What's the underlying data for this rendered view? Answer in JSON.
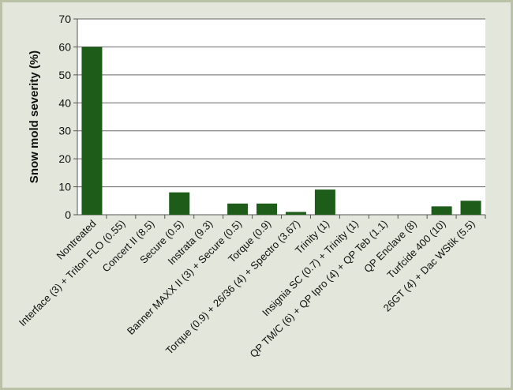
{
  "chart_data": {
    "type": "bar",
    "title": "",
    "xlabel": "",
    "ylabel": "Snow mold severity (%)",
    "ylim": [
      0,
      70
    ],
    "yticks": [
      0,
      10,
      20,
      30,
      40,
      50,
      60,
      70
    ],
    "grid": true,
    "bar_color": "#1e5c1a",
    "categories": [
      "Nontreated",
      "Interface (3) + Triton FLO (0.55)",
      "Concert II (8.5)",
      "Secure (0.5)",
      "Instrata (9.3)",
      "Banner MAXX II (3) + Secure (0.5)",
      "Torque (0.9)",
      "Torque (0.9) + 26/36 (4) + Spectro (3.67)",
      "Trinity (1)",
      "Insignia SC (0.7) + Trinity (1)",
      "QP TM/C (6) + QP Ipro (4) + QP Teb (1.1)",
      "QP Enclave (8)",
      "Turfcide 400 (10)",
      "26GT (4) + Dac WStik (5.5)"
    ],
    "values": [
      60,
      0,
      0,
      8,
      0,
      4,
      4,
      1,
      9,
      0,
      0,
      0,
      3,
      5
    ]
  }
}
